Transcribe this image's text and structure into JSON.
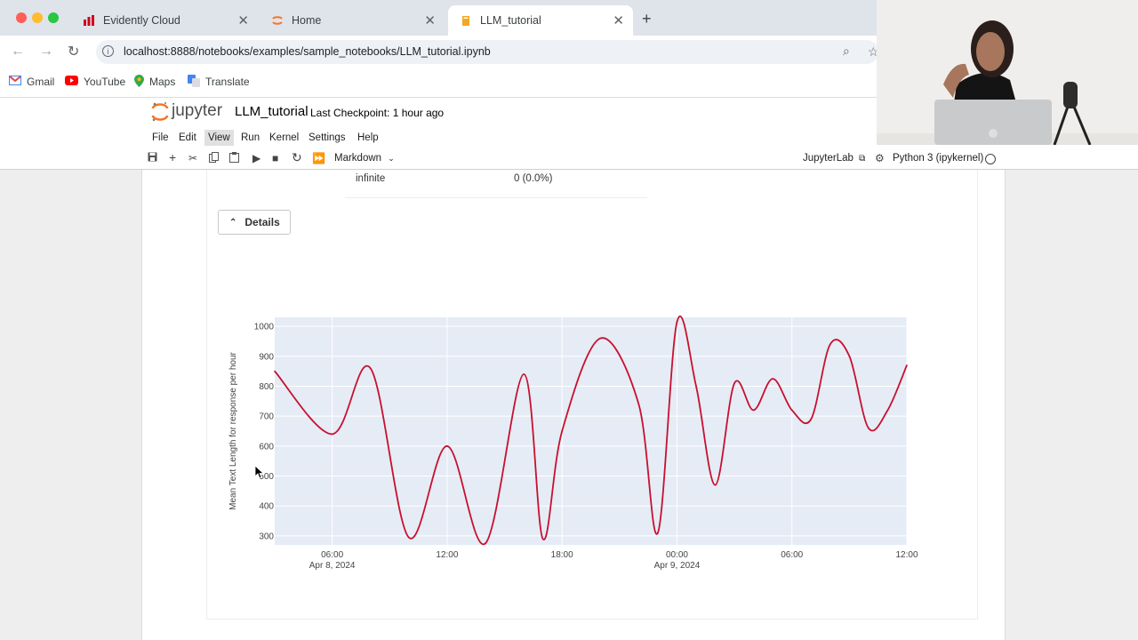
{
  "browser": {
    "tabs": [
      {
        "title": "Evidently Cloud",
        "icon": "evidently-bars-icon"
      },
      {
        "title": "Home",
        "icon": "jupyter-ring-icon"
      },
      {
        "title": "LLM_tutorial",
        "icon": "notebook-book-icon"
      }
    ],
    "url": "localhost:8888/notebooks/examples/sample_notebooks/LLM_tutorial.ipynb",
    "bookmarks": [
      {
        "label": "Gmail",
        "icon": "gmail-icon"
      },
      {
        "label": "YouTube",
        "icon": "youtube-icon"
      },
      {
        "label": "Maps",
        "icon": "maps-pin-icon"
      },
      {
        "label": "Translate",
        "icon": "translate-icon"
      }
    ]
  },
  "jupyter": {
    "logo_text": "jupyter",
    "notebook_name": "LLM_tutorial",
    "checkpoint": "Last Checkpoint: 1 hour ago",
    "menu": [
      "File",
      "Edit",
      "View",
      "Run",
      "Kernel",
      "Settings",
      "Help"
    ],
    "selected_menu": "View",
    "cell_type": "Markdown",
    "jupyterlab_label": "JupyterLab",
    "kernel": "Python 3 (ipykernel)"
  },
  "output": {
    "stat_label": "infinite",
    "stat_value": "0 (0.0%)",
    "details_label": "Details"
  },
  "chart_data": {
    "type": "line",
    "ylabel": "Mean Text Length for response per hour",
    "xlabel": "",
    "ylim": [
      270,
      1030
    ],
    "yticks": [
      300,
      400,
      500,
      600,
      700,
      800,
      900,
      1000
    ],
    "xlim": [
      "2024-04-08 03:00",
      "2024-04-09 12:00"
    ],
    "xticks": [
      {
        "t": "2024-04-08 06:00",
        "label": "06:00",
        "sublabel": "Apr 8, 2024"
      },
      {
        "t": "2024-04-08 12:00",
        "label": "12:00",
        "sublabel": ""
      },
      {
        "t": "2024-04-08 18:00",
        "label": "18:00",
        "sublabel": ""
      },
      {
        "t": "2024-04-09 00:00",
        "label": "00:00",
        "sublabel": "Apr 9, 2024"
      },
      {
        "t": "2024-04-09 06:00",
        "label": "06:00",
        "sublabel": ""
      },
      {
        "t": "2024-04-09 12:00",
        "label": "12:00",
        "sublabel": ""
      }
    ],
    "series": [
      {
        "color": "#c8102e",
        "x": [
          "2024-04-08 03:00",
          "2024-04-08 06:00",
          "2024-04-08 08:00",
          "2024-04-08 10:00",
          "2024-04-08 12:00",
          "2024-04-08 14:00",
          "2024-04-08 16:00",
          "2024-04-08 17:00",
          "2024-04-08 18:00",
          "2024-04-08 20:00",
          "2024-04-08 22:00",
          "2024-04-08 23:00",
          "2024-04-09 00:00",
          "2024-04-09 01:00",
          "2024-04-09 02:00",
          "2024-04-09 03:00",
          "2024-04-09 04:00",
          "2024-04-09 05:00",
          "2024-04-09 06:00",
          "2024-04-09 07:00",
          "2024-04-09 08:00",
          "2024-04-09 09:00",
          "2024-04-09 10:00",
          "2024-04-09 11:00",
          "2024-04-09 12:00"
        ],
        "y": [
          850,
          640,
          860,
          295,
          600,
          275,
          840,
          290,
          650,
          960,
          740,
          310,
          1015,
          800,
          470,
          810,
          720,
          825,
          720,
          690,
          940,
          900,
          660,
          720,
          870
        ]
      }
    ],
    "grid": true,
    "legend": "none",
    "plot_bg": "#e5ecf6"
  }
}
